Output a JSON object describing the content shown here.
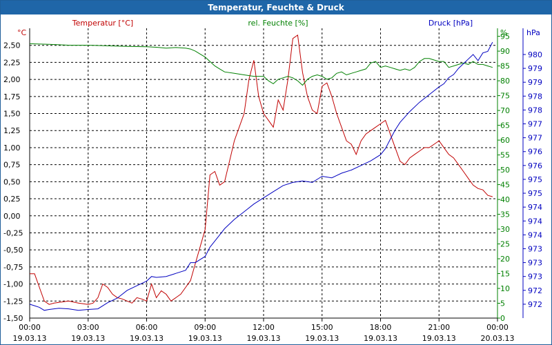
{
  "window": {
    "title": "Temperatur, Feuchte & Druck"
  },
  "colors": {
    "temperature": "#c00000",
    "humidity": "#008000",
    "pressure": "#0000c0",
    "grid": "#000000",
    "axis": "#000000",
    "title_bar": "#1f66a8"
  },
  "chart_data": {
    "type": "line",
    "title": "Temperatur, Feuchte & Druck",
    "x_ticks": [
      {
        "hour": 0,
        "time": "00:00",
        "date": "19.03.13"
      },
      {
        "hour": 3,
        "time": "03:00",
        "date": "19.03.13"
      },
      {
        "hour": 6,
        "time": "06:00",
        "date": "19.03.13"
      },
      {
        "hour": 9,
        "time": "09:00",
        "date": "19.03.13"
      },
      {
        "hour": 12,
        "time": "12:00",
        "date": "19.03.13"
      },
      {
        "hour": 15,
        "time": "15:00",
        "date": "19.03.13"
      },
      {
        "hour": 18,
        "time": "18:00",
        "date": "19.03.13"
      },
      {
        "hour": 21,
        "time": "21:00",
        "date": "19.03.13"
      },
      {
        "hour": 24,
        "time": "00:00",
        "date": "20.03.13"
      }
    ],
    "x_range": [
      0,
      24
    ],
    "axes": {
      "temperature": {
        "unit_label": "°C",
        "series_label": "Temperatur [°C]",
        "range": [
          -1.5,
          2.75
        ],
        "ticks": [
          "-1,50",
          "-1,25",
          "-1,00",
          "-0,75",
          "-0,50",
          "-0,25",
          "0,00",
          "0,25",
          "0,50",
          "0,75",
          "1,00",
          "1,25",
          "1,50",
          "1,75",
          "2,00",
          "2,25",
          "2,50"
        ]
      },
      "humidity": {
        "unit_label": "%",
        "series_label": "rel. Feuchte [%]",
        "range": [
          0,
          97.7
        ],
        "ticks": [
          "0",
          "5",
          "10",
          "15",
          "20",
          "25",
          "30",
          "35",
          "40",
          "45",
          "50",
          "55",
          "60",
          "65",
          "70",
          "75",
          "80",
          "85",
          "90",
          "95"
        ]
      },
      "pressure": {
        "unit_label": "hPa",
        "series_label": "Druck [hPa]",
        "range": [
          971.5,
          980.9
        ],
        "ticks": [
          "972",
          "972",
          "973",
          "973",
          "973",
          "974",
          "974",
          "974",
          "975",
          "975",
          "976",
          "976",
          "977",
          "977",
          "978",
          "978",
          "979",
          "979",
          "980"
        ]
      }
    },
    "series": [
      {
        "name": "Temperatur [°C]",
        "axis": "temperature",
        "x": [
          0,
          0.25,
          0.5,
          0.75,
          1,
          1.25,
          1.5,
          2,
          2.5,
          3,
          3.25,
          3.5,
          3.75,
          4,
          4.25,
          4.5,
          4.75,
          5,
          5.25,
          5.5,
          5.75,
          6,
          6.25,
          6.5,
          6.75,
          7,
          7.25,
          7.5,
          7.75,
          8,
          8.25,
          8.5,
          8.75,
          9,
          9.25,
          9.5,
          9.75,
          10,
          10.25,
          10.5,
          10.75,
          11,
          11.25,
          11.5,
          11.75,
          12,
          12.25,
          12.5,
          12.75,
          13,
          13.25,
          13.5,
          13.75,
          14,
          14.25,
          14.5,
          14.75,
          15,
          15.25,
          15.5,
          15.75,
          16,
          16.25,
          16.5,
          16.75,
          17,
          17.25,
          17.5,
          17.75,
          18,
          18.25,
          18.5,
          18.75,
          19,
          19.25,
          19.5,
          19.75,
          20,
          20.25,
          20.5,
          20.75,
          21,
          21.25,
          21.5,
          21.75,
          22,
          22.25,
          22.5,
          22.75,
          23,
          23.25,
          23.5,
          23.75
        ],
        "values": [
          -0.85,
          -0.85,
          -1.05,
          -1.25,
          -1.3,
          -1.28,
          -1.27,
          -1.25,
          -1.28,
          -1.3,
          -1.28,
          -1.2,
          -1.0,
          -1.05,
          -1.15,
          -1.2,
          -1.22,
          -1.25,
          -1.28,
          -1.2,
          -1.22,
          -1.25,
          -1.0,
          -1.2,
          -1.1,
          -1.15,
          -1.25,
          -1.2,
          -1.15,
          -1.05,
          -0.95,
          -0.7,
          -0.45,
          -0.2,
          0.6,
          0.65,
          0.45,
          0.5,
          0.8,
          1.1,
          1.3,
          1.5,
          2.0,
          2.28,
          1.75,
          1.5,
          1.4,
          1.3,
          1.7,
          1.55,
          2.0,
          2.6,
          2.65,
          2.1,
          1.75,
          1.55,
          1.5,
          1.9,
          1.95,
          1.75,
          1.5,
          1.3,
          1.1,
          1.05,
          0.9,
          1.1,
          1.2,
          1.25,
          1.3,
          1.35,
          1.4,
          1.2,
          1.0,
          0.8,
          0.75,
          0.85,
          0.9,
          0.95,
          1.0,
          1.0,
          1.05,
          1.1,
          1.0,
          0.9,
          0.85,
          0.75,
          0.65,
          0.55,
          0.45,
          0.4,
          0.38,
          0.3,
          0.28
        ]
      },
      {
        "name": "rel. Feuchte [%]",
        "axis": "humidity",
        "x": [
          0,
          1,
          2,
          3,
          4,
          5,
          6,
          6.5,
          7,
          7.5,
          8,
          8.25,
          8.5,
          8.75,
          9,
          9.25,
          9.5,
          9.75,
          10,
          10.5,
          11,
          11.5,
          12,
          12.25,
          12.5,
          12.75,
          13,
          13.25,
          13.5,
          13.75,
          14,
          14.25,
          14.5,
          14.75,
          15,
          15.25,
          15.5,
          15.75,
          16,
          16.25,
          16.5,
          16.75,
          17,
          17.25,
          17.5,
          17.75,
          18,
          18.25,
          18.5,
          18.75,
          19,
          19.25,
          19.5,
          19.75,
          20,
          20.25,
          20.5,
          20.75,
          21,
          21.25,
          21.5,
          21.75,
          22,
          22.25,
          22.5,
          22.75,
          23,
          23.25,
          23.5,
          23.75
        ],
        "values": [
          92.5,
          92.3,
          92.0,
          92.0,
          91.8,
          91.6,
          91.5,
          91.3,
          91.0,
          91.2,
          91.0,
          90.7,
          90.0,
          89.0,
          88.0,
          86.5,
          85.0,
          84.0,
          83.0,
          82.5,
          82.0,
          81.5,
          81.5,
          80.0,
          79.0,
          80.5,
          81.0,
          81.5,
          81.0,
          80.0,
          78.5,
          80.5,
          81.5,
          82.0,
          81.5,
          80.5,
          81.0,
          82.5,
          83.0,
          82.0,
          82.5,
          83.0,
          83.5,
          84.0,
          86.0,
          86.5,
          84.5,
          85.0,
          84.5,
          84.0,
          83.5,
          84.0,
          83.5,
          84.5,
          86.5,
          87.5,
          87.5,
          87.0,
          86.5,
          86.5,
          84.5,
          85.0,
          85.5,
          86.0,
          85.5,
          86.5,
          85.5,
          85.5,
          85.0,
          84.5
        ]
      },
      {
        "name": "Druck [hPa]",
        "axis": "pressure",
        "x": [
          0,
          0.25,
          0.5,
          0.75,
          1,
          1.5,
          2,
          2.5,
          3,
          3.5,
          4,
          4.5,
          5,
          5.5,
          6,
          6.25,
          6.5,
          7,
          7.5,
          8,
          8.25,
          8.5,
          8.75,
          9,
          9.25,
          9.5,
          9.75,
          10,
          10.5,
          11,
          11.5,
          12,
          12.5,
          13,
          13.5,
          14,
          14.5,
          15,
          15.5,
          16,
          16.5,
          17,
          17.5,
          18,
          18.25,
          18.5,
          18.75,
          19,
          19.5,
          20,
          20.5,
          21,
          21.25,
          21.5,
          21.75,
          22,
          22.25,
          22.5,
          22.75,
          23,
          23.25,
          23.5,
          23.75
        ],
        "values": [
          971.95,
          971.9,
          971.85,
          971.75,
          971.78,
          971.82,
          971.8,
          971.75,
          971.78,
          971.8,
          972.0,
          972.15,
          972.4,
          972.55,
          972.7,
          972.85,
          972.82,
          972.85,
          972.95,
          973.05,
          973.3,
          973.3,
          973.4,
          973.5,
          973.8,
          974.0,
          974.2,
          974.4,
          974.7,
          974.95,
          975.2,
          975.4,
          975.6,
          975.8,
          975.9,
          975.95,
          975.9,
          976.1,
          976.05,
          976.2,
          976.3,
          976.45,
          976.6,
          976.8,
          977.0,
          977.3,
          977.6,
          977.85,
          978.2,
          978.5,
          978.75,
          979.0,
          979.1,
          979.3,
          979.4,
          979.6,
          979.75,
          979.9,
          980.05,
          979.85,
          980.1,
          980.15,
          980.45
        ]
      }
    ]
  }
}
